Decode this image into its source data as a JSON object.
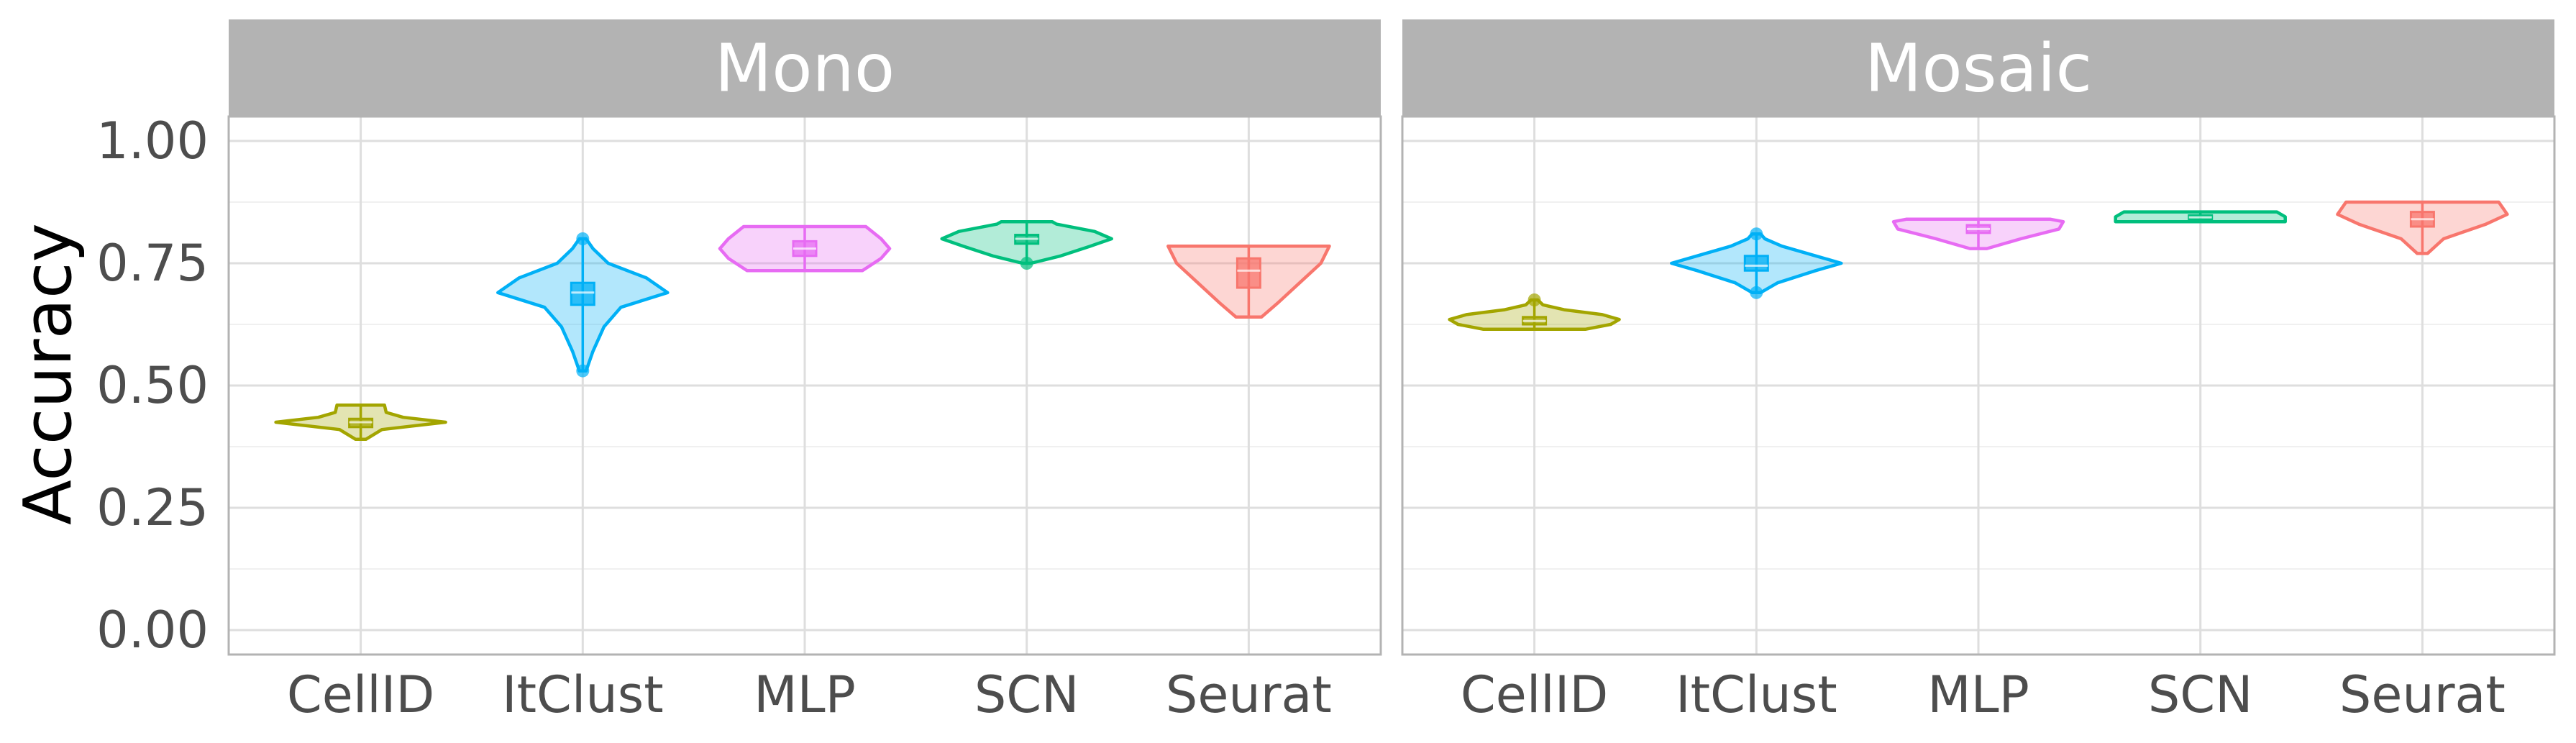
{
  "chart_data": {
    "type": "violin",
    "ylabel": "Accuracy",
    "ylim": [
      -0.05,
      1.05
    ],
    "yticks": [
      0.0,
      0.25,
      0.5,
      0.75,
      1.0
    ],
    "ytick_labels": [
      "0.00",
      "0.25",
      "0.50",
      "0.75",
      "1.00"
    ],
    "categories": [
      "CellID",
      "ItClust",
      "MLP",
      "SCN",
      "Seurat"
    ],
    "colors": {
      "CellID": "#a3a500",
      "ItClust": "#00b0f6",
      "MLP": "#e76bf3",
      "SCN": "#00bf7d",
      "Seurat": "#f8766d"
    },
    "grid": true,
    "panels": [
      {
        "title": "Mono",
        "series": [
          {
            "name": "CellID",
            "min": 0.39,
            "q1": 0.415,
            "median": 0.425,
            "q3": 0.432,
            "max": 0.46,
            "outliers": [],
            "violin": [
              [
                0.39,
                0.06
              ],
              [
                0.41,
                0.25
              ],
              [
                0.425,
                1.0
              ],
              [
                0.435,
                0.5
              ],
              [
                0.445,
                0.3
              ],
              [
                0.46,
                0.28
              ]
            ]
          },
          {
            "name": "ItClust",
            "min": 0.53,
            "q1": 0.665,
            "median": 0.69,
            "q3": 0.71,
            "max": 0.8,
            "outliers": [
              0.53,
              0.8
            ],
            "violin": [
              [
                0.53,
                0.04
              ],
              [
                0.57,
                0.12
              ],
              [
                0.62,
                0.25
              ],
              [
                0.66,
                0.45
              ],
              [
                0.69,
                1.0
              ],
              [
                0.72,
                0.75
              ],
              [
                0.75,
                0.3
              ],
              [
                0.78,
                0.12
              ],
              [
                0.8,
                0.04
              ]
            ]
          },
          {
            "name": "MLP",
            "min": 0.735,
            "q1": 0.765,
            "median": 0.78,
            "q3": 0.795,
            "max": 0.825,
            "outliers": [],
            "violin": [
              [
                0.735,
                0.68
              ],
              [
                0.76,
                0.9
              ],
              [
                0.78,
                1.0
              ],
              [
                0.8,
                0.9
              ],
              [
                0.825,
                0.72
              ]
            ]
          },
          {
            "name": "SCN",
            "min": 0.75,
            "q1": 0.79,
            "median": 0.8,
            "q3": 0.808,
            "max": 0.835,
            "outliers": [
              0.75
            ],
            "violin": [
              [
                0.75,
                0.05
              ],
              [
                0.765,
                0.4
              ],
              [
                0.785,
                0.75
              ],
              [
                0.8,
                1.0
              ],
              [
                0.815,
                0.8
              ],
              [
                0.83,
                0.35
              ],
              [
                0.835,
                0.3
              ]
            ]
          },
          {
            "name": "Seurat",
            "min": 0.64,
            "q1": 0.7,
            "median": 0.735,
            "q3": 0.76,
            "max": 0.785,
            "outliers": [],
            "violin": [
              [
                0.64,
                0.15
              ],
              [
                0.67,
                0.35
              ],
              [
                0.71,
                0.6
              ],
              [
                0.75,
                0.85
              ],
              [
                0.785,
                0.95
              ]
            ]
          }
        ]
      },
      {
        "title": "Mosaic",
        "series": [
          {
            "name": "CellID",
            "min": 0.615,
            "q1": 0.625,
            "median": 0.632,
            "q3": 0.64,
            "max": 0.675,
            "outliers": [
              0.675
            ],
            "violin": [
              [
                0.615,
                0.6
              ],
              [
                0.625,
                0.9
              ],
              [
                0.635,
                1.0
              ],
              [
                0.645,
                0.8
              ],
              [
                0.655,
                0.35
              ],
              [
                0.665,
                0.1
              ],
              [
                0.675,
                0.04
              ]
            ]
          },
          {
            "name": "ItClust",
            "min": 0.69,
            "q1": 0.735,
            "median": 0.745,
            "q3": 0.765,
            "max": 0.81,
            "outliers": [
              0.69,
              0.81
            ],
            "violin": [
              [
                0.69,
                0.05
              ],
              [
                0.71,
                0.25
              ],
              [
                0.735,
                0.7
              ],
              [
                0.75,
                1.0
              ],
              [
                0.765,
                0.7
              ],
              [
                0.785,
                0.3
              ],
              [
                0.8,
                0.1
              ],
              [
                0.81,
                0.05
              ]
            ]
          },
          {
            "name": "MLP",
            "min": 0.78,
            "q1": 0.812,
            "median": 0.82,
            "q3": 0.828,
            "max": 0.84,
            "outliers": [],
            "violin": [
              [
                0.78,
                0.1
              ],
              [
                0.8,
                0.5
              ],
              [
                0.82,
                0.95
              ],
              [
                0.835,
                1.0
              ],
              [
                0.84,
                0.85
              ]
            ]
          },
          {
            "name": "SCN",
            "min": 0.835,
            "q1": 0.84,
            "median": 0.844,
            "q3": 0.848,
            "max": 0.855,
            "outliers": [],
            "violin": [
              [
                0.835,
                1.0
              ],
              [
                0.845,
                1.0
              ],
              [
                0.855,
                0.9
              ]
            ]
          },
          {
            "name": "Seurat",
            "min": 0.77,
            "q1": 0.825,
            "median": 0.84,
            "q3": 0.855,
            "max": 0.875,
            "outliers": [],
            "violin": [
              [
                0.77,
                0.06
              ],
              [
                0.8,
                0.25
              ],
              [
                0.83,
                0.75
              ],
              [
                0.85,
                1.0
              ],
              [
                0.875,
                0.9
              ]
            ]
          }
        ]
      }
    ]
  }
}
